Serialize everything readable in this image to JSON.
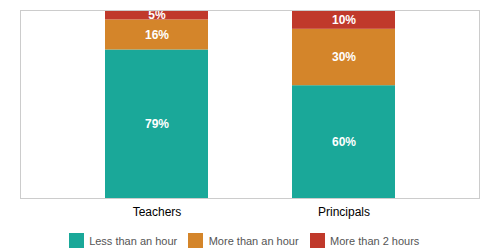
{
  "chart_data": {
    "type": "bar",
    "stacked": true,
    "categories": [
      "Teachers",
      "Principals"
    ],
    "series": [
      {
        "name": "Less than an hour",
        "color": "#1aA899",
        "values": [
          79,
          60
        ],
        "value_labels": [
          "79%",
          "60%"
        ]
      },
      {
        "name": "More than an hour",
        "color": "#D4852A",
        "values": [
          16,
          30
        ],
        "value_labels": [
          "16%",
          "30%"
        ]
      },
      {
        "name": "More than 2 hours",
        "color": "#C0392B",
        "values": [
          5,
          10
        ],
        "value_labels": [
          "5%",
          "10%"
        ]
      }
    ],
    "ylim": [
      0,
      100
    ],
    "data_labels": true,
    "tick_labels": "x",
    "legend": "bottom",
    "grid": false
  }
}
